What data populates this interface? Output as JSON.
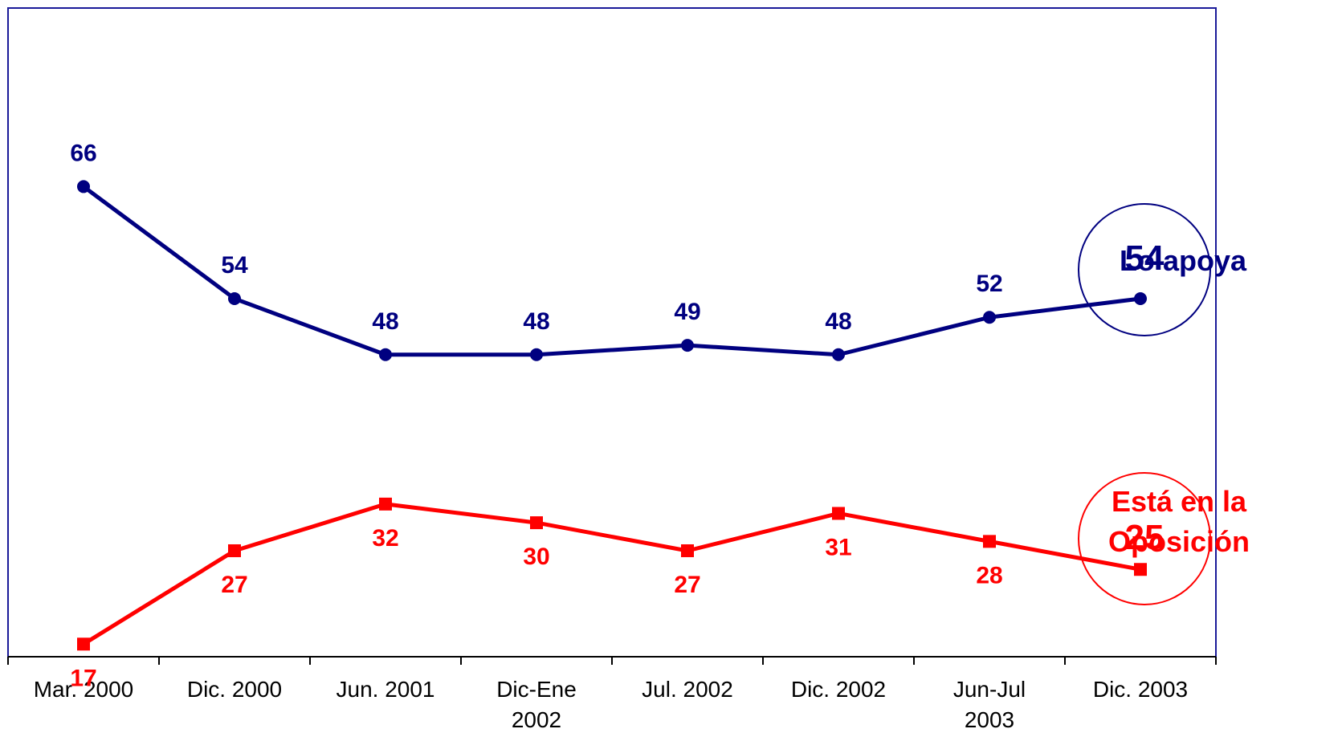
{
  "chart_data": {
    "type": "line",
    "categories": [
      [
        "Mar. 2000"
      ],
      [
        "Dic. 2000"
      ],
      [
        "Jun. 2001"
      ],
      [
        "Dic-Ene",
        "2002"
      ],
      [
        "Jul. 2002"
      ],
      [
        "Dic. 2002"
      ],
      [
        "Jun-Jul",
        "2003"
      ],
      [
        "Dic. 2003"
      ]
    ],
    "series": [
      {
        "name": "Lo apoya",
        "color": "#000080",
        "marker": "circle",
        "values": [
          66,
          54,
          48,
          48,
          49,
          48,
          52,
          54
        ],
        "highlight_value": "54"
      },
      {
        "name_lines": [
          "Está en la",
          "Oposición"
        ],
        "color": "#ff0000",
        "marker": "square",
        "values": [
          17,
          27,
          32,
          30,
          27,
          31,
          28,
          25
        ],
        "highlight_value": "25"
      }
    ],
    "title": "",
    "xlabel": "",
    "ylabel": "",
    "ylim": [
      0,
      100
    ],
    "grid": false,
    "legend": "inline-right"
  }
}
